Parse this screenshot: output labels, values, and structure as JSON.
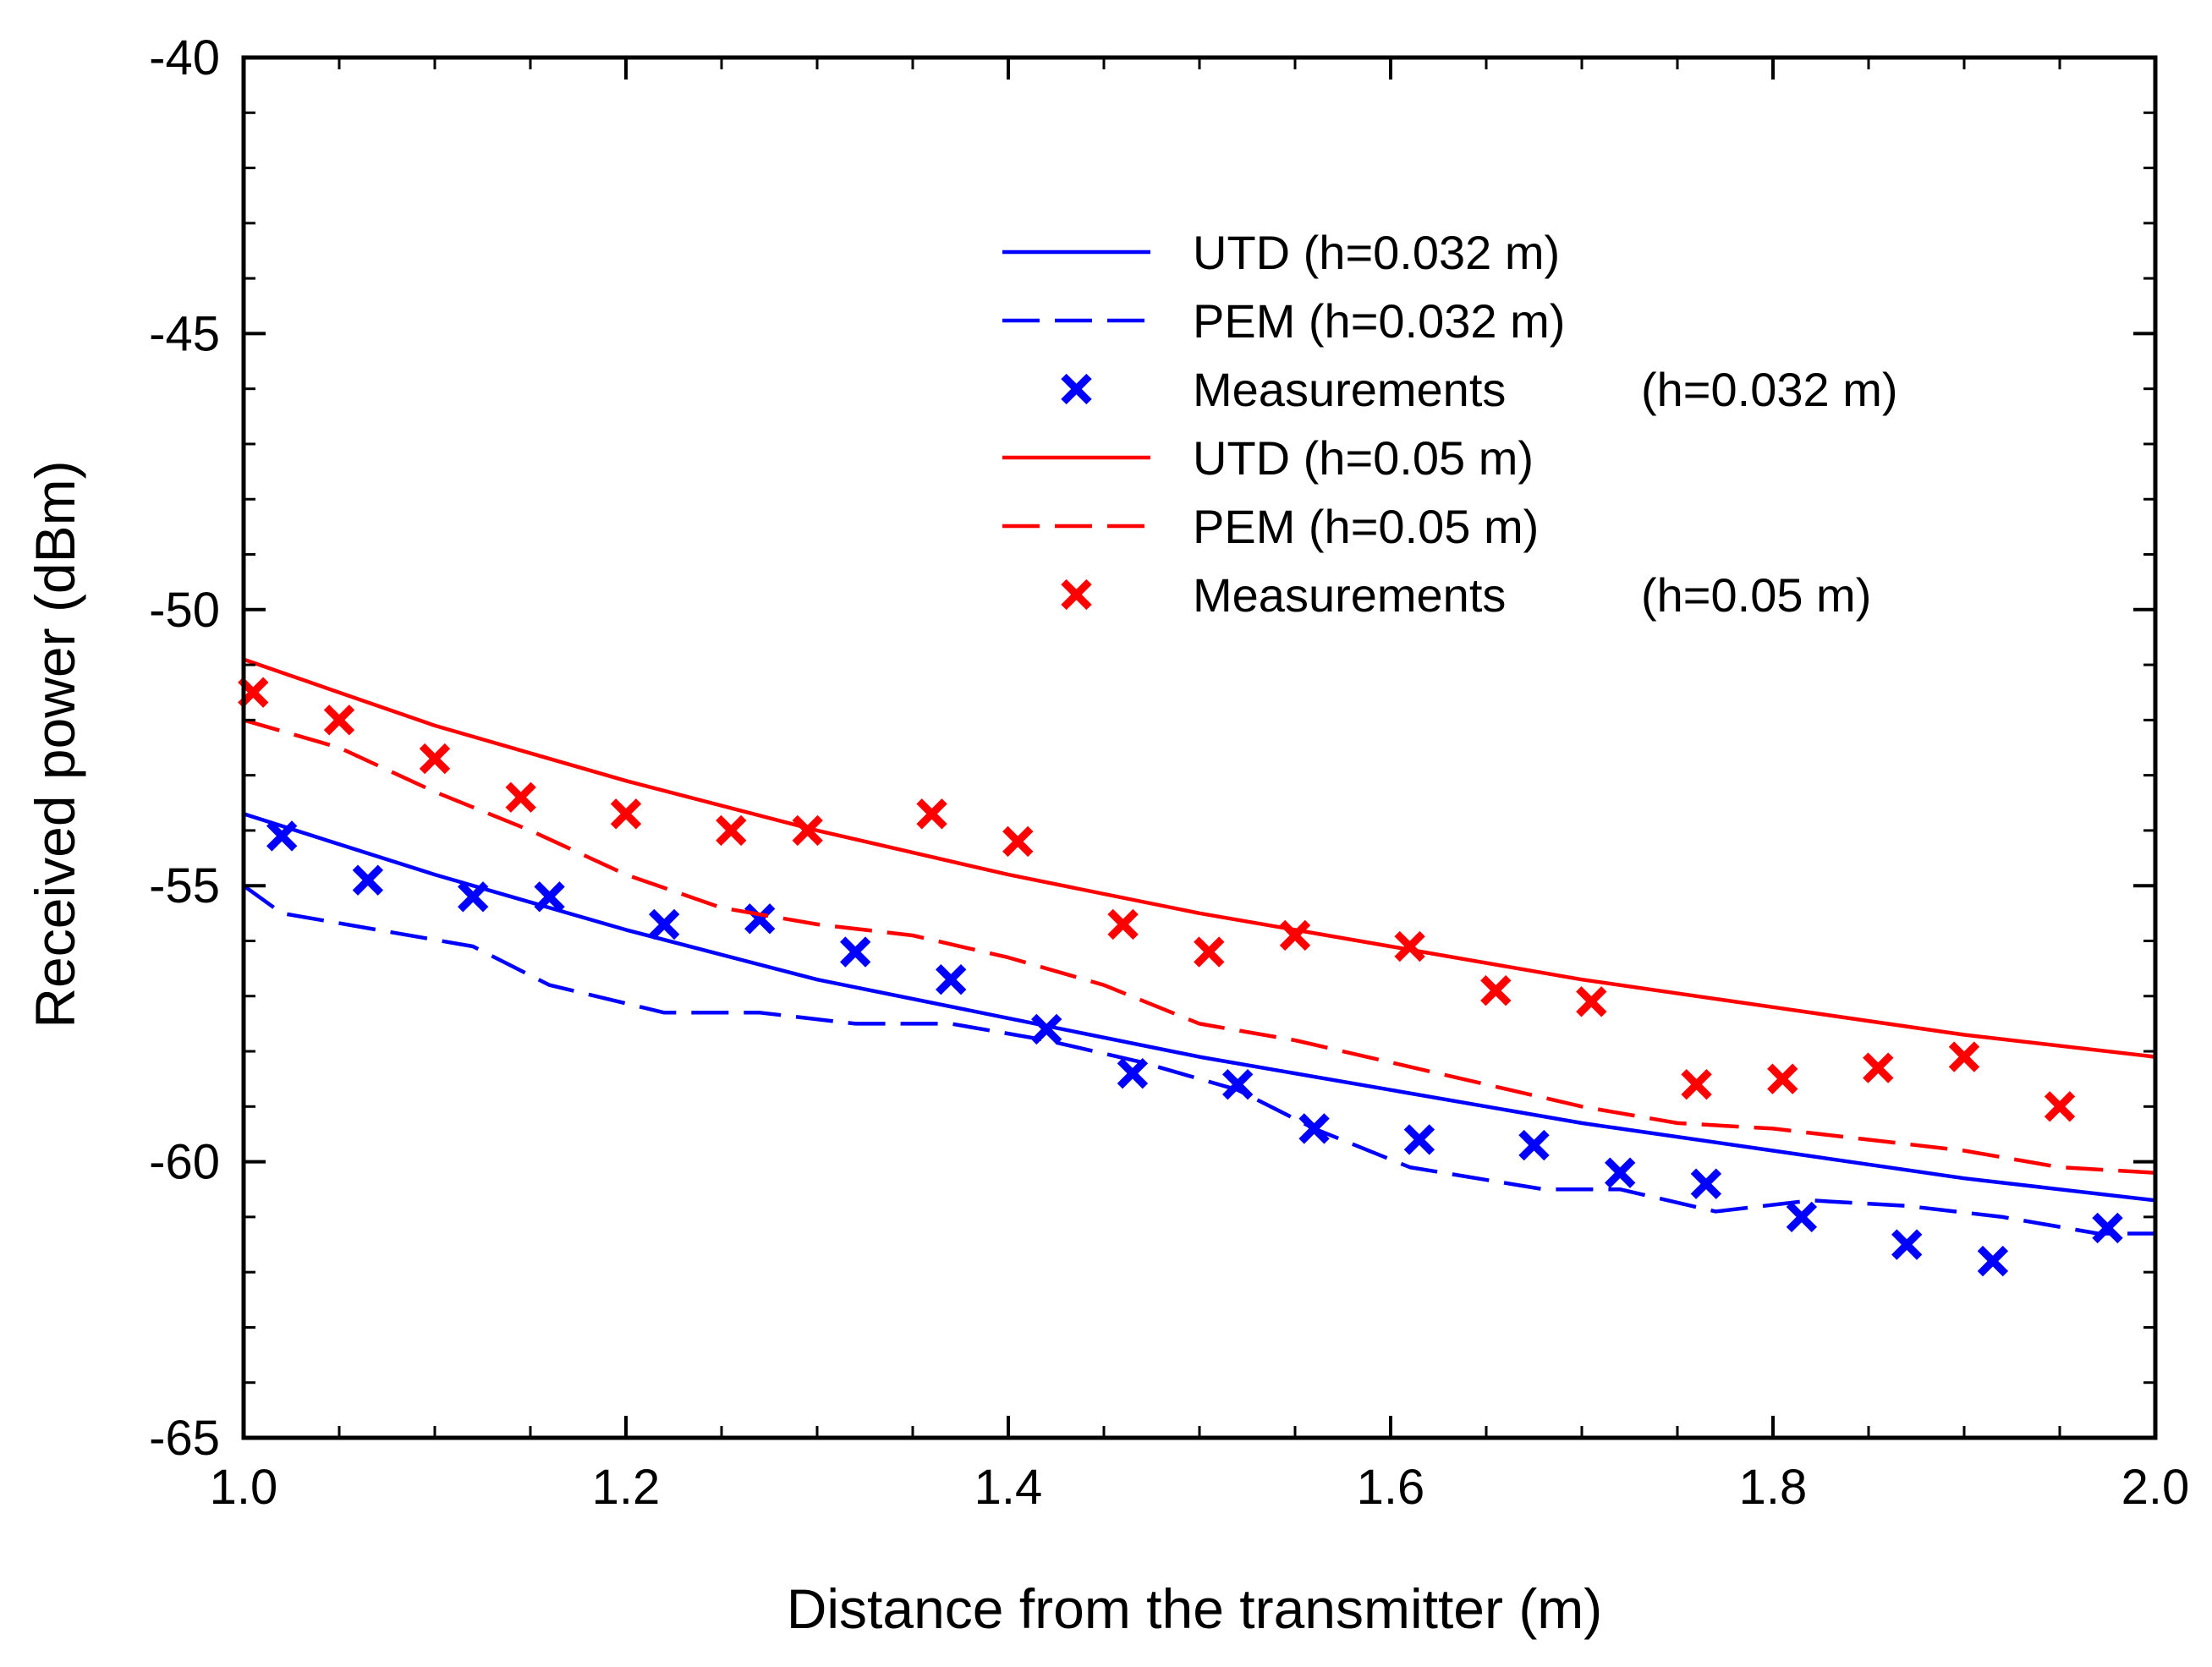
{
  "chart_data": {
    "type": "line",
    "title": "",
    "xlabel": "Distance from the transmitter (m)",
    "ylabel": "Received power (dBm)",
    "xlim": [
      1.0,
      2.0
    ],
    "ylim": [
      -65,
      -40
    ],
    "xticks": [
      1.0,
      1.2,
      1.4,
      1.6,
      1.8,
      2.0
    ],
    "xtick_labels": [
      "1.0",
      "1.2",
      "1.4",
      "1.6",
      "1.8",
      "2.0"
    ],
    "yticks": [
      -65,
      -60,
      -55,
      -50,
      -45,
      -40
    ],
    "ytick_labels": [
      "-65",
      "-60",
      "-55",
      "-50",
      "-45",
      "-40"
    ],
    "grid": false,
    "legend_position": "top-right",
    "series": [
      {
        "name": "UTD (h=0.032 m)",
        "legend_label": "UTD (h=0.032 m)",
        "kind": "line",
        "style": "solid",
        "color": "#0000ff",
        "x": [
          1.0,
          1.1,
          1.2,
          1.3,
          1.4,
          1.5,
          1.6,
          1.7,
          1.8,
          1.9,
          2.0
        ],
        "y": [
          -53.7,
          -54.8,
          -55.8,
          -56.7,
          -57.4,
          -58.1,
          -58.7,
          -59.3,
          -59.8,
          -60.3,
          -60.7
        ]
      },
      {
        "name": "PEM (h=0.032 m)",
        "legend_label": "PEM (h=0.032 m)",
        "kind": "line",
        "style": "dashed",
        "color": "#0000ff",
        "x": [
          1.0,
          1.02,
          1.12,
          1.16,
          1.22,
          1.27,
          1.32,
          1.37,
          1.42,
          1.47,
          1.52,
          1.56,
          1.61,
          1.68,
          1.72,
          1.77,
          1.82,
          1.87,
          1.92,
          1.97,
          2.0
        ],
        "y": [
          -55.0,
          -55.5,
          -56.1,
          -56.8,
          -57.3,
          -57.3,
          -57.5,
          -57.5,
          -57.8,
          -58.2,
          -58.7,
          -59.4,
          -60.1,
          -60.5,
          -60.5,
          -60.9,
          -60.7,
          -60.8,
          -61.0,
          -61.3,
          -61.3
        ]
      },
      {
        "name": "Measurements (h=0.032 m)",
        "legend_label": "Measurements",
        "legend_note": "(h=0.032 m)",
        "kind": "scatter",
        "marker": "x",
        "color": "#0000ff",
        "x": [
          1.02,
          1.065,
          1.12,
          1.16,
          1.22,
          1.27,
          1.32,
          1.37,
          1.42,
          1.465,
          1.52,
          1.56,
          1.615,
          1.675,
          1.72,
          1.765,
          1.815,
          1.87,
          1.915,
          1.975
        ],
        "y": [
          -54.1,
          -54.9,
          -55.2,
          -55.2,
          -55.7,
          -55.6,
          -56.2,
          -56.7,
          -57.6,
          -58.4,
          -58.6,
          -59.4,
          -59.6,
          -59.7,
          -60.2,
          -60.4,
          -61.0,
          -61.5,
          -61.8,
          -61.2
        ]
      },
      {
        "name": "UTD (h=0.05 m)",
        "legend_label": "UTD (h=0.05 m)",
        "kind": "line",
        "style": "solid",
        "color": "#ff0000",
        "x": [
          1.0,
          1.1,
          1.2,
          1.3,
          1.4,
          1.5,
          1.6,
          1.7,
          1.8,
          1.9,
          2.0
        ],
        "y": [
          -50.9,
          -52.1,
          -53.1,
          -54.0,
          -54.8,
          -55.5,
          -56.1,
          -56.7,
          -57.2,
          -57.7,
          -58.1
        ]
      },
      {
        "name": "PEM (h=0.05 m)",
        "legend_label": "PEM (h=0.05 m)",
        "kind": "line",
        "style": "dashed",
        "color": "#ff0000",
        "x": [
          1.0,
          1.05,
          1.1,
          1.15,
          1.2,
          1.25,
          1.3,
          1.35,
          1.4,
          1.45,
          1.5,
          1.55,
          1.6,
          1.65,
          1.7,
          1.75,
          1.8,
          1.85,
          1.9,
          1.95,
          2.0
        ],
        "y": [
          -52.0,
          -52.5,
          -53.3,
          -54.0,
          -54.8,
          -55.4,
          -55.7,
          -55.9,
          -56.3,
          -56.8,
          -57.5,
          -57.8,
          -58.2,
          -58.6,
          -59.0,
          -59.3,
          -59.4,
          -59.6,
          -59.8,
          -60.1,
          -60.2
        ]
      },
      {
        "name": "Measurements (h=0.05 m)",
        "legend_label": "Measurements",
        "legend_note": "(h=0.05 m)",
        "kind": "scatter",
        "marker": "x",
        "color": "#ff0000",
        "x": [
          1.005,
          1.05,
          1.1,
          1.145,
          1.2,
          1.255,
          1.295,
          1.36,
          1.405,
          1.46,
          1.505,
          1.55,
          1.61,
          1.655,
          1.705,
          1.76,
          1.805,
          1.855,
          1.9,
          1.95
        ],
        "y": [
          -51.5,
          -52.0,
          -52.7,
          -53.4,
          -53.7,
          -54.0,
          -54.0,
          -53.7,
          -54.2,
          -55.7,
          -56.2,
          -55.9,
          -56.1,
          -56.9,
          -57.1,
          -58.6,
          -58.5,
          -58.3,
          -58.1,
          -59.0
        ]
      }
    ]
  }
}
